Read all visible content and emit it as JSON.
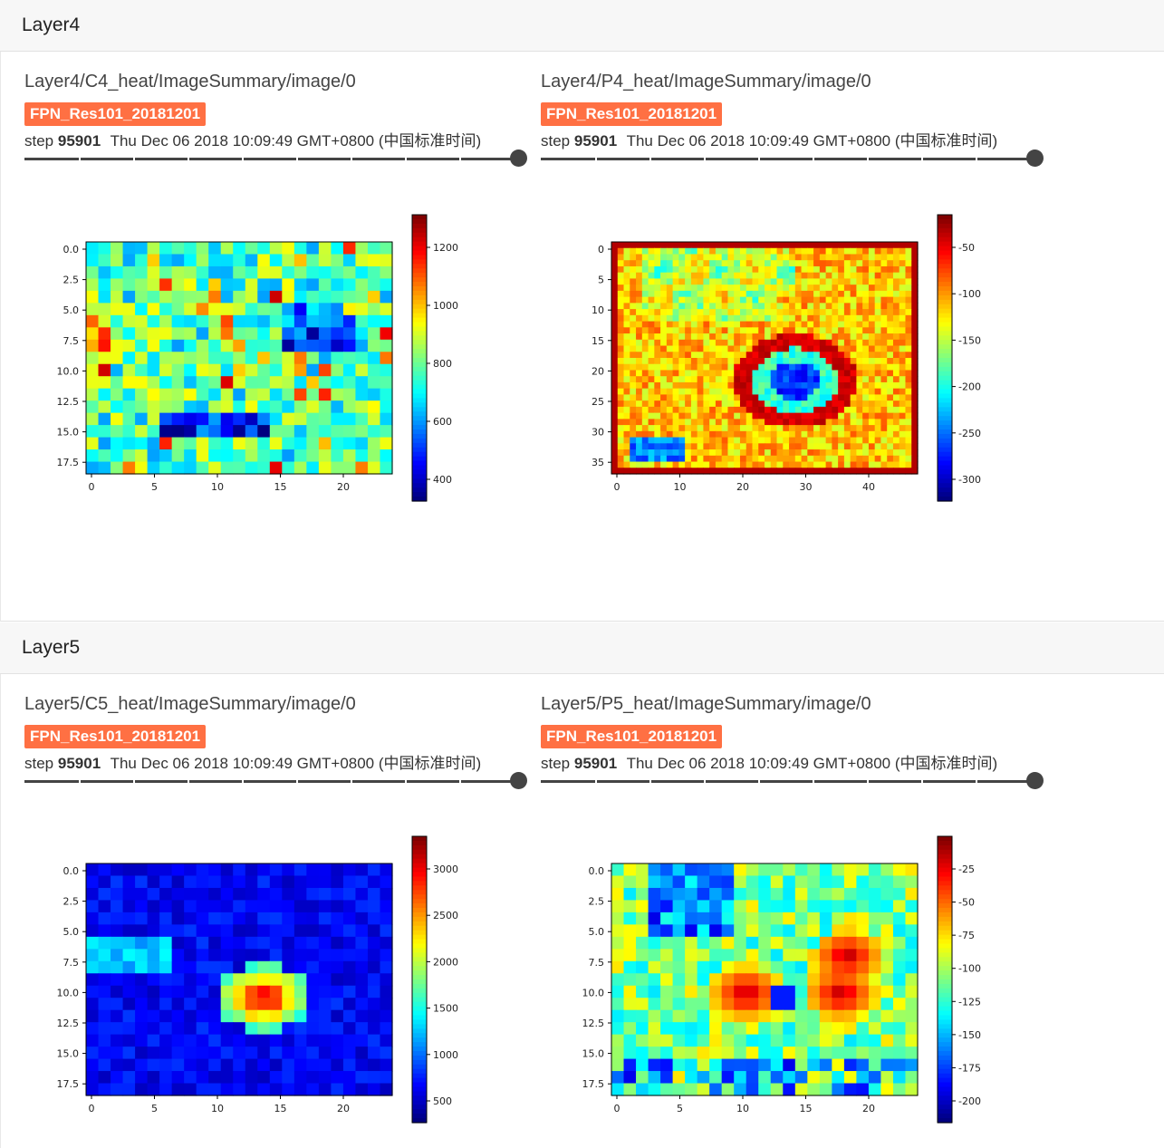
{
  "sections": [
    {
      "title": "Layer4",
      "cards": [
        {
          "title": "Layer4/C4_heat/ImageSummary/image/0",
          "run": "FPN_Res101_20181201",
          "step_label": "step",
          "step": "95901",
          "timestamp": "Thu Dec 06 2018 10:09:49 GMT+0800 (中国标准时间)",
          "image": {
            "y_ticks": [
              "0.0",
              "2.5",
              "5.0",
              "7.5",
              "10.0",
              "12.5",
              "15.0",
              "17.5"
            ],
            "x_ticks": [
              "0",
              "5",
              "10",
              "15",
              "20"
            ],
            "colorbar_ticks": [
              "1200",
              "1000",
              "800",
              "600",
              "400"
            ]
          }
        },
        {
          "title": "Layer4/P4_heat/ImageSummary/image/0",
          "run": "FPN_Res101_20181201",
          "step_label": "step",
          "step": "95901",
          "timestamp": "Thu Dec 06 2018 10:09:49 GMT+0800 (中国标准时间)",
          "image": {
            "y_ticks": [
              "0",
              "5",
              "10",
              "15",
              "20",
              "25",
              "30",
              "35"
            ],
            "x_ticks": [
              "0",
              "10",
              "20",
              "30",
              "40"
            ],
            "colorbar_ticks": [
              "-50",
              "-100",
              "-150",
              "-200",
              "-250",
              "-300"
            ]
          }
        }
      ]
    },
    {
      "title": "Layer5",
      "cards": [
        {
          "title": "Layer5/C5_heat/ImageSummary/image/0",
          "run": "FPN_Res101_20181201",
          "step_label": "step",
          "step": "95901",
          "timestamp": "Thu Dec 06 2018 10:09:49 GMT+0800 (中国标准时间)",
          "image": {
            "y_ticks": [
              "0.0",
              "2.5",
              "5.0",
              "7.5",
              "10.0",
              "12.5",
              "15.0",
              "17.5"
            ],
            "x_ticks": [
              "0",
              "5",
              "10",
              "15",
              "20"
            ],
            "colorbar_ticks": [
              "3000",
              "2500",
              "2000",
              "1500",
              "1000",
              "500"
            ]
          }
        },
        {
          "title": "Layer5/P5_heat/ImageSummary/image/0",
          "run": "FPN_Res101_20181201",
          "step_label": "step",
          "step": "95901",
          "timestamp": "Thu Dec 06 2018 10:09:49 GMT+0800 (中国标准时间)",
          "image": {
            "y_ticks": [
              "0.0",
              "2.5",
              "5.0",
              "7.5",
              "10.0",
              "12.5",
              "15.0",
              "17.5"
            ],
            "x_ticks": [
              "0",
              "5",
              "10",
              "15",
              "20"
            ],
            "colorbar_ticks": [
              "-25",
              "-50",
              "-75",
              "-100",
              "-125",
              "-150",
              "-175",
              "-200"
            ]
          }
        }
      ]
    }
  ],
  "colors": {
    "run_badge": "#ff7043",
    "slider": "#444444"
  }
}
